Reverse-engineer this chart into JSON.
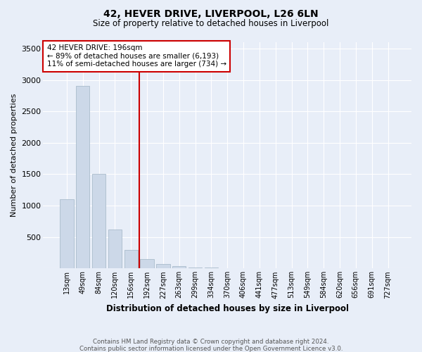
{
  "title": "42, HEVER DRIVE, LIVERPOOL, L26 6LN",
  "subtitle": "Size of property relative to detached houses in Liverpool",
  "xlabel": "Distribution of detached houses by size in Liverpool",
  "ylabel": "Number of detached properties",
  "bar_labels": [
    "13sqm",
    "49sqm",
    "84sqm",
    "120sqm",
    "156sqm",
    "192sqm",
    "227sqm",
    "263sqm",
    "299sqm",
    "334sqm",
    "370sqm",
    "406sqm",
    "441sqm",
    "477sqm",
    "513sqm",
    "549sqm",
    "584sqm",
    "620sqm",
    "656sqm",
    "691sqm",
    "727sqm"
  ],
  "bar_values": [
    1100,
    2900,
    1500,
    620,
    300,
    150,
    70,
    35,
    20,
    10,
    5,
    3,
    2,
    2,
    1,
    1,
    1,
    1,
    1,
    1,
    1
  ],
  "bar_color": "#ccd8e8",
  "bar_edgecolor": "#aabccc",
  "vline_index": 5,
  "vline_color": "#cc0000",
  "annotation_text": "42 HEVER DRIVE: 196sqm\n← 89% of detached houses are smaller (6,193)\n11% of semi-detached houses are larger (734) →",
  "annotation_box_facecolor": "#ffffff",
  "annotation_box_edgecolor": "#cc0000",
  "ylim": [
    0,
    3600
  ],
  "yticks": [
    0,
    500,
    1000,
    1500,
    2000,
    2500,
    3000,
    3500
  ],
  "fig_background": "#e8eef8",
  "plot_background": "#e8eef8",
  "grid_color": "#ffffff",
  "footer_line1": "Contains HM Land Registry data © Crown copyright and database right 2024.",
  "footer_line2": "Contains public sector information licensed under the Open Government Licence v3.0."
}
